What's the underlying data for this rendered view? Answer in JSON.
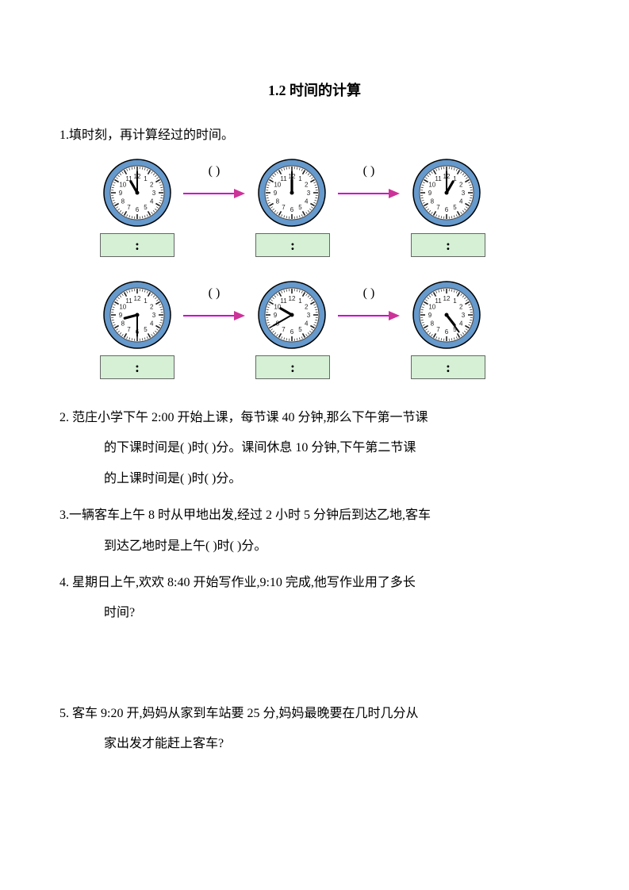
{
  "title": "1.2  时间的计算",
  "q1_prompt": "1.填时刻，再计算经过的时间。",
  "paren_label": "(        )",
  "time_sep": ":",
  "clock_style": {
    "outer_ring_fill": "#6699cc",
    "outer_ring_stroke": "#000000",
    "face_fill": "#ffffff",
    "face_stroke": "#444444",
    "tick_color": "#222222",
    "hand_color": "#000000",
    "center_dot": "#000000",
    "size": 86
  },
  "arrow_style": {
    "line_color": "#cc00cc",
    "head_fill": "#cc3399",
    "width": 78,
    "height": 14
  },
  "box_style": {
    "fill": "#d5f0d5",
    "border": "#666666"
  },
  "row1": {
    "clocks": [
      {
        "hour_angle": 330,
        "minute_angle": 0
      },
      {
        "hour_angle": 0,
        "minute_angle": 0
      },
      {
        "hour_angle": 30,
        "minute_angle": 0
      }
    ]
  },
  "row2": {
    "clocks": [
      {
        "hour_angle": 255,
        "minute_angle": 180
      },
      {
        "hour_angle": 300,
        "minute_angle": 240
      },
      {
        "hour_angle": 142,
        "minute_angle": 144
      }
    ]
  },
  "q2_line1": "2. 范庄小学下午 2:00 开始上课，每节课 40 分钟,那么下午第一节课",
  "q2_line2": "的下课时间是(     )时(      )分。课间休息 10 分钟,下午第二节课",
  "q2_line3": "的上课时间是(     )时(      )分。",
  "q3_line1": "3.一辆客车上午 8 时从甲地出发,经过 2 小时 5 分钟后到达乙地,客车",
  "q3_line2": "到达乙地时是上午(     )时(     )分。",
  "q4_line1": "4. 星期日上午,欢欢 8:40 开始写作业,9:10 完成,他写作业用了多长",
  "q4_line2": "时间?",
  "q5_line1": "5. 客车 9:20 开,妈妈从家到车站要 25 分,妈妈最晚要在几时几分从",
  "q5_line2": "家出发才能赶上客车?"
}
